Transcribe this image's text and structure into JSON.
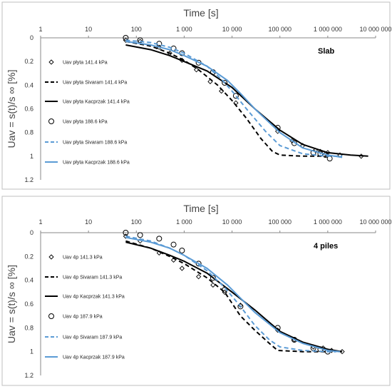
{
  "chart_data": [
    {
      "type": "scatter",
      "title": "",
      "annotation": "Slab",
      "xlabel": "Time [s]",
      "ylabel": "Uav = s(t)/s ∞  [%]",
      "xscale": "log",
      "xlim": [
        1,
        10000000
      ],
      "ylim": [
        0,
        1.2
      ],
      "y_inverted": true,
      "x_tick_labels": [
        "1",
        "10",
        "100",
        "1 000",
        "10 000",
        "100 000",
        "1 000 000",
        "10 000 000"
      ],
      "y_tick_labels": [
        "0",
        "0.2",
        "0.4",
        "0.6",
        "0.8",
        "1",
        "1.2"
      ],
      "legend_position": "left-inside",
      "series": [
        {
          "name": "Uav płyta 141.4 kPa",
          "style": "diamond",
          "color": "#000000",
          "points": [
            [
              60,
              0.02
            ],
            [
              120,
              0.03
            ],
            [
              300,
              0.08
            ],
            [
              500,
              0.13
            ],
            [
              900,
              0.19
            ],
            [
              1800,
              0.27
            ],
            [
              3500,
              0.37
            ],
            [
              6000,
              0.45
            ],
            [
              12000,
              0.55
            ],
            [
              90000,
              0.79
            ],
            [
              180000,
              0.87
            ],
            [
              300000,
              0.91
            ],
            [
              550000,
              0.95
            ],
            [
              700000,
              0.96
            ],
            [
              1000000,
              0.97
            ],
            [
              1800000,
              0.99
            ],
            [
              5000000,
              1.0
            ]
          ]
        },
        {
          "name": "Uav płyta Sivaram 141.4 kPa",
          "style": "dash",
          "color": "#000000",
          "points": [
            [
              60,
              0.03
            ],
            [
              200,
              0.07
            ],
            [
              500,
              0.13
            ],
            [
              1000,
              0.19
            ],
            [
              2000,
              0.27
            ],
            [
              5000,
              0.4
            ],
            [
              10000,
              0.53
            ],
            [
              20000,
              0.68
            ],
            [
              40000,
              0.85
            ],
            [
              70000,
              0.96
            ],
            [
              100000,
              0.99
            ],
            [
              300000,
              1.0
            ],
            [
              1000000,
              1.0
            ]
          ]
        },
        {
          "name": "Uav płyta Kacprzak 141.4 kPa",
          "style": "solid",
          "color": "#000000",
          "points": [
            [
              60,
              0.06
            ],
            [
              200,
              0.1
            ],
            [
              500,
              0.15
            ],
            [
              1000,
              0.2
            ],
            [
              3000,
              0.28
            ],
            [
              10000,
              0.42
            ],
            [
              30000,
              0.6
            ],
            [
              100000,
              0.78
            ],
            [
              300000,
              0.9
            ],
            [
              1000000,
              0.97
            ],
            [
              3000000,
              0.99
            ],
            [
              7000000,
              1.0
            ]
          ]
        },
        {
          "name": "Uav płyta 188.6 kPa",
          "style": "circle",
          "color": "#000000",
          "points": [
            [
              60,
              0.0
            ],
            [
              120,
              0.02
            ],
            [
              300,
              0.05
            ],
            [
              600,
              0.09
            ],
            [
              900,
              0.13
            ],
            [
              2000,
              0.21
            ],
            [
              4000,
              0.29
            ],
            [
              7000,
              0.38
            ],
            [
              12000,
              0.49
            ],
            [
              90000,
              0.76
            ],
            [
              200000,
              0.89
            ],
            [
              500000,
              0.97
            ],
            [
              700000,
              0.98
            ],
            [
              900000,
              0.99
            ],
            [
              1100000,
              1.02
            ]
          ]
        },
        {
          "name": "Uav płyta Sivaram 188.6 kPa",
          "style": "dash",
          "color": "#5b9bd5",
          "points": [
            [
              60,
              0.02
            ],
            [
              200,
              0.04
            ],
            [
              500,
              0.08
            ],
            [
              1000,
              0.13
            ],
            [
              3000,
              0.24
            ],
            [
              6000,
              0.35
            ],
            [
              10000,
              0.45
            ],
            [
              20000,
              0.6
            ],
            [
              50000,
              0.79
            ],
            [
              100000,
              0.91
            ],
            [
              300000,
              0.98
            ],
            [
              1000000,
              1.0
            ],
            [
              2000000,
              1.0
            ]
          ]
        },
        {
          "name": "Uav płyta Kacprzak 188.6 kPa",
          "style": "solid",
          "color": "#5b9bd5",
          "points": [
            [
              60,
              0.03
            ],
            [
              200,
              0.06
            ],
            [
              500,
              0.1
            ],
            [
              1000,
              0.15
            ],
            [
              3000,
              0.24
            ],
            [
              8000,
              0.36
            ],
            [
              15000,
              0.47
            ],
            [
              30000,
              0.6
            ],
            [
              100000,
              0.8
            ],
            [
              300000,
              0.93
            ],
            [
              1000000,
              0.99
            ],
            [
              2000000,
              1.01
            ]
          ]
        }
      ]
    },
    {
      "type": "scatter",
      "title": "",
      "annotation": "4 piles",
      "xlabel": "Time [s]",
      "ylabel": "Uav = s(t)/s ∞  [%]",
      "xscale": "log",
      "xlim": [
        1,
        10000000
      ],
      "ylim": [
        0,
        1.2
      ],
      "y_inverted": true,
      "x_tick_labels": [
        "1",
        "10",
        "100",
        "1 000",
        "10 000",
        "100 000",
        "1 000 000",
        "10 000 000"
      ],
      "y_tick_labels": [
        "0",
        "0.2",
        "0.4",
        "0.6",
        "0.8",
        "1",
        "1.2"
      ],
      "legend_position": "left-inside",
      "series": [
        {
          "name": "Uav 4p 141.3 kPa",
          "style": "diamond",
          "color": "#000000",
          "points": [
            [
              60,
              0.03
            ],
            [
              120,
              0.07
            ],
            [
              300,
              0.17
            ],
            [
              600,
              0.23
            ],
            [
              900,
              0.3
            ],
            [
              2000,
              0.37
            ],
            [
              4000,
              0.44
            ],
            [
              7000,
              0.5
            ],
            [
              15000,
              0.61
            ],
            [
              90000,
              0.82
            ],
            [
              200000,
              0.9
            ],
            [
              500000,
              0.96
            ],
            [
              800000,
              0.97
            ],
            [
              1200000,
              0.99
            ],
            [
              2000000,
              1.0
            ]
          ]
        },
        {
          "name": "Uav 4p Sivaram 141.3 kPa",
          "style": "dash",
          "color": "#000000",
          "points": [
            [
              60,
              0.07
            ],
            [
              200,
              0.13
            ],
            [
              500,
              0.2
            ],
            [
              1000,
              0.26
            ],
            [
              3000,
              0.38
            ],
            [
              7000,
              0.5
            ],
            [
              15000,
              0.7
            ],
            [
              30000,
              0.82
            ],
            [
              60000,
              0.93
            ],
            [
              90000,
              0.99
            ],
            [
              300000,
              1.0
            ],
            [
              1000000,
              1.0
            ]
          ]
        },
        {
          "name": "Uav 4p Kacprzak 141.3 kPa",
          "style": "solid",
          "color": "#000000",
          "points": [
            [
              60,
              0.08
            ],
            [
              200,
              0.13
            ],
            [
              500,
              0.19
            ],
            [
              1000,
              0.24
            ],
            [
              3000,
              0.34
            ],
            [
              10000,
              0.5
            ],
            [
              30000,
              0.65
            ],
            [
              100000,
              0.83
            ],
            [
              300000,
              0.92
            ],
            [
              1000000,
              0.98
            ],
            [
              2000000,
              1.0
            ]
          ]
        },
        {
          "name": "Uav 4p 187.9 kPa",
          "style": "circle",
          "color": "#000000",
          "points": [
            [
              60,
              0.0
            ],
            [
              120,
              0.02
            ],
            [
              300,
              0.05
            ],
            [
              600,
              0.1
            ],
            [
              900,
              0.15
            ],
            [
              2000,
              0.26
            ],
            [
              4000,
              0.38
            ],
            [
              7000,
              0.48
            ],
            [
              15000,
              0.62
            ],
            [
              90000,
              0.8
            ],
            [
              200000,
              0.9
            ],
            [
              500000,
              0.97
            ],
            [
              700000,
              0.98
            ],
            [
              1000000,
              1.0
            ]
          ]
        },
        {
          "name": "Uav 4p Sivaram 187.9 kPa",
          "style": "dash",
          "color": "#5b9bd5",
          "points": [
            [
              60,
              0.03
            ],
            [
              200,
              0.07
            ],
            [
              500,
              0.13
            ],
            [
              1000,
              0.19
            ],
            [
              3000,
              0.32
            ],
            [
              7000,
              0.46
            ],
            [
              15000,
              0.62
            ],
            [
              30000,
              0.78
            ],
            [
              60000,
              0.9
            ],
            [
              100000,
              0.96
            ],
            [
              300000,
              0.99
            ],
            [
              1000000,
              1.0
            ],
            [
              1500000,
              1.0
            ]
          ]
        },
        {
          "name": "Uav 4p Kacprzak 187.9 kPa",
          "style": "solid",
          "color": "#5b9bd5",
          "points": [
            [
              60,
              0.04
            ],
            [
              200,
              0.08
            ],
            [
              500,
              0.13
            ],
            [
              1000,
              0.19
            ],
            [
              3000,
              0.3
            ],
            [
              8000,
              0.44
            ],
            [
              15000,
              0.55
            ],
            [
              30000,
              0.67
            ],
            [
              100000,
              0.84
            ],
            [
              300000,
              0.93
            ],
            [
              1000000,
              0.99
            ],
            [
              1800000,
              1.0
            ]
          ]
        }
      ]
    }
  ]
}
